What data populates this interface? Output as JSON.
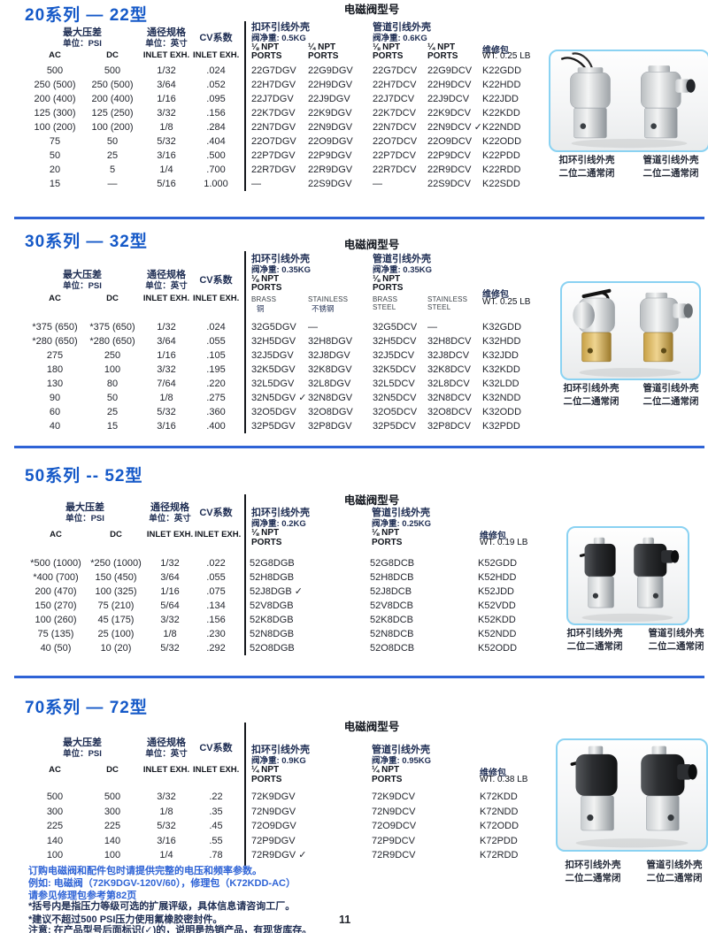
{
  "page": {
    "number": "11"
  },
  "footer": {
    "blue": [
      "订购电磁阀和配件包时请提供完整的电压和频率参数。",
      "例如: 电磁阀（72K9DGV-120V/60），修理包（K72KDD-AC）",
      "请参见修理包参考第82页"
    ],
    "dark": [
      "*括号内是指压力等级可选的扩展评级，具体信息请咨询工厂。",
      "*建议不超过500 PSI压力使用氟橡胶密封件。",
      "注意: 在产品型号后面标识(✓)的，说明是热销产品，有现货库存。"
    ]
  },
  "sections": [
    {
      "title": "20系列 — 22型",
      "center_title": "电磁阀型号",
      "left": {
        "h1a": "最大压差",
        "h1b": "单位：PSI",
        "h2a": "通径规格",
        "h2b": "单位：英寸",
        "h3": "CV系数",
        "ac": "AC",
        "dc": "DC",
        "in1": "INLET EXH.",
        "in2": "INLET EXH."
      },
      "g1": {
        "name": "扣环引线外壳",
        "weight": "阀净重: 0.5KG",
        "c1a": "⅛ NPT",
        "c1b": "PORTS",
        "c2a": "¼ NPT",
        "c2b": "PORTS"
      },
      "g2": {
        "name": "管道引线外壳",
        "weight": "阀净重: 0.6KG",
        "c1a": "⅛ NPT",
        "c1b": "PORTS",
        "c2a": "¼ NPT",
        "c2b": "PORTS"
      },
      "kit": {
        "a": "维修包",
        "b": "WT. 0.25 LB"
      },
      "rows": [
        [
          "500",
          "500",
          "1/32",
          ".024",
          "22G7DGV",
          "22G9DGV",
          "22G7DCV",
          "22G9DCV",
          "K22GDD"
        ],
        [
          "250 (500)",
          "250 (500)",
          "3/64",
          ".052",
          "22H7DGV",
          "22H9DGV",
          "22H7DCV",
          "22H9DCV",
          "K22HDD"
        ],
        [
          "200 (400)",
          "200 (400)",
          "1/16",
          ".095",
          "22J7DGV",
          "22J9DGV",
          "22J7DCV",
          "22J9DCV",
          "K22JDD"
        ],
        [
          "125 (300)",
          "125 (250)",
          "3/32",
          ".156",
          "22K7DGV",
          "22K9DGV",
          "22K7DCV",
          "22K9DCV",
          "K22KDD"
        ],
        [
          "100 (200)",
          "100 (200)",
          "1/8",
          ".284",
          "22N7DGV",
          "22N9DGV",
          "22N7DCV",
          "22N9DCV ✓",
          "K22NDD"
        ],
        [
          "75",
          "50",
          "5/32",
          ".404",
          "22O7DGV",
          "22O9DGV",
          "22O7DCV",
          "22O9DCV",
          "K22ODD"
        ],
        [
          "50",
          "25",
          "3/16",
          ".500",
          "22P7DGV",
          "22P9DGV",
          "22P7DCV",
          "22P9DCV",
          "K22PDD"
        ],
        [
          "20",
          "5",
          "1/4",
          ".700",
          "22R7DGV",
          "22R9DGV",
          "22R7DCV",
          "22R9DCV",
          "K22RDD"
        ],
        [
          "15",
          "—",
          "5/16",
          "1.000",
          "—",
          "22S9DGV",
          "—",
          "22S9DCV",
          "K22SDD"
        ]
      ],
      "cap1a": "扣环引线外壳",
      "cap1b": "二位二通常闭",
      "cap2a": "管道引线外壳",
      "cap2b": "二位二通常闭"
    },
    {
      "title": "30系列 — 32型",
      "center_title": "电磁阀型号",
      "left": {
        "h1a": "最大压差",
        "h1b": "单位：PSI",
        "h2a": "通径规格",
        "h2b": "单位：英寸",
        "h3": "CV系数",
        "ac": "AC",
        "dc": "DC",
        "in1": "INLET EXH.",
        "in2": "INLET EXH."
      },
      "g1": {
        "name": "扣环引线外壳",
        "weight": "阀净重: 0.35KG",
        "c1a": "⅛ NPT",
        "c1b": "PORTS",
        "s1a": "BRASS",
        "s1b": "铜",
        "s2a": "STAINLESS",
        "s2b": "不锈钢"
      },
      "g2": {
        "name": "管道引线外壳",
        "weight": "阀净重: 0.35KG",
        "c1a": "⅛ NPT",
        "c1b": "PORTS",
        "s1a": "BRASS",
        "s1b": "STEEL",
        "s2a": "STAINLESS",
        "s2b": "STEEL"
      },
      "kit": {
        "a": "维修包",
        "b": "WT. 0.25 LB"
      },
      "rows": [
        [
          "*375 (650)",
          "*375 (650)",
          "1/32",
          ".024",
          "32G5DGV",
          "—",
          "32G5DCV",
          "—",
          "K32GDD"
        ],
        [
          "*280 (650)",
          "*280 (650)",
          "3/64",
          ".055",
          "32H5DGV",
          "32H8DGV",
          "32H5DCV",
          "32H8DCV",
          "K32HDD"
        ],
        [
          "275",
          "250",
          "1/16",
          ".105",
          "32J5DGV",
          "32J8DGV",
          "32J5DCV",
          "32J8DCV",
          "K32JDD"
        ],
        [
          "180",
          "100",
          "3/32",
          ".195",
          "32K5DGV",
          "32K8DGV",
          "32K5DCV",
          "32K8DCV",
          "K32KDD"
        ],
        [
          "130",
          "80",
          "7/64",
          ".220",
          "32L5DGV",
          "32L8DGV",
          "32L5DCV",
          "32L8DCV",
          "K32LDD"
        ],
        [
          "90",
          "50",
          "1/8",
          ".275",
          "32N5DGV ✓",
          "32N8DGV",
          "32N5DCV",
          "32N8DCV",
          "K32NDD"
        ],
        [
          "60",
          "25",
          "5/32",
          ".360",
          "32O5DGV",
          "32O8DGV",
          "32O5DCV",
          "32O8DCV",
          "K32ODD"
        ],
        [
          "40",
          "15",
          "3/16",
          ".400",
          "32P5DGV",
          "32P8DGV",
          "32P5DCV",
          "32P8DCV",
          "K32PDD"
        ]
      ],
      "cap1a": "扣环引线外壳",
      "cap1b": "二位二通常闭",
      "cap2a": "管道引线外壳",
      "cap2b": "二位二通常闭"
    },
    {
      "title": "50系列 -- 52型",
      "center_title": "电磁阀型号",
      "left": {
        "h1a": "最大压差",
        "h1b": "单位：PSI",
        "h2a": "通径规格",
        "h2b": "单位：英寸",
        "h3": "CV系数",
        "ac": "AC",
        "dc": "DC",
        "in1": "INLET EXH.",
        "in2": "INLET EXH."
      },
      "g1": {
        "name": "扣环引线外壳",
        "weight": "阀净重: 0.2KG",
        "c1a": "⅛ NPT",
        "c1b": "PORTS"
      },
      "g2": {
        "name": "管道引线外壳",
        "weight": "阀净重: 0.25KG",
        "c1a": "⅛ NPT",
        "c1b": "PORTS"
      },
      "kit": {
        "a": "维修包",
        "b": "WT. 0.19 LB"
      },
      "rows": [
        [
          "*500 (1000)",
          "*250 (1000)",
          "1/32",
          ".022",
          "52G8DGB",
          "52G8DCB",
          "K52GDD"
        ],
        [
          "*400 (700)",
          "150 (450)",
          "3/64",
          ".055",
          "52H8DGB",
          "52H8DCB",
          "K52HDD"
        ],
        [
          "200 (470)",
          "100 (325)",
          "1/16",
          ".075",
          "52J8DGB ✓",
          "52J8DCB",
          "K52JDD"
        ],
        [
          "150 (270)",
          "75 (210)",
          "5/64",
          ".134",
          "52V8DGB",
          "52V8DCB",
          "K52VDD"
        ],
        [
          "100 (260)",
          "45 (175)",
          "3/32",
          ".156",
          "52K8DGB",
          "52K8DCB",
          "K52KDD"
        ],
        [
          "75 (135)",
          "25 (100)",
          "1/8",
          ".230",
          "52N8DGB",
          "52N8DCB",
          "K52NDD"
        ],
        [
          "40 (50)",
          "10 (20)",
          "5/32",
          ".292",
          "52O8DGB",
          "52O8DCB",
          "K52ODD"
        ]
      ],
      "cap1a": "扣环引线外壳",
      "cap1b": "二位二通常闭",
      "cap2a": "管道引线外壳",
      "cap2b": "二位二通常闭"
    },
    {
      "title": "70系列 — 72型",
      "center_title": "电磁阀型号",
      "left": {
        "h1a": "最大压差",
        "h1b": "单位：PSI",
        "h2a": "通径规格",
        "h2b": "单位：英寸",
        "h3": "CV系数",
        "ac": "AC",
        "dc": "DC",
        "in1": "INLET EXH.",
        "in2": "INLET EXH."
      },
      "g1": {
        "name": "扣环引线外壳",
        "weight": "阀净重: 0.9KG",
        "c1a": "¼ NPT",
        "c1b": "PORTS"
      },
      "g2": {
        "name": "管道引线外壳",
        "weight": "阀净重: 0.95KG",
        "c1a": "¼ NPT",
        "c1b": "PORTS"
      },
      "kit": {
        "a": "维修包",
        "b": "WT. 0.38 LB"
      },
      "rows": [
        [
          "500",
          "500",
          "3/32",
          ".22",
          "72K9DGV",
          "72K9DCV",
          "K72KDD"
        ],
        [
          "300",
          "300",
          "1/8",
          ".35",
          "72N9DGV",
          "72N9DCV",
          "K72NDD"
        ],
        [
          "225",
          "225",
          "5/32",
          ".45",
          "72O9DGV",
          "72O9DCV",
          "K72ODD"
        ],
        [
          "140",
          "140",
          "3/16",
          ".55",
          "72P9DGV",
          "72P9DCV",
          "K72PDD"
        ],
        [
          "100",
          "100",
          "1/4",
          ".78",
          "72R9DGV ✓",
          "72R9DCV",
          "K72RDD"
        ]
      ],
      "cap1a": "扣环引线外壳",
      "cap1b": "二位二通常闭",
      "cap2a": "管道引线外壳",
      "cap2b": "二位二通常闭"
    }
  ]
}
